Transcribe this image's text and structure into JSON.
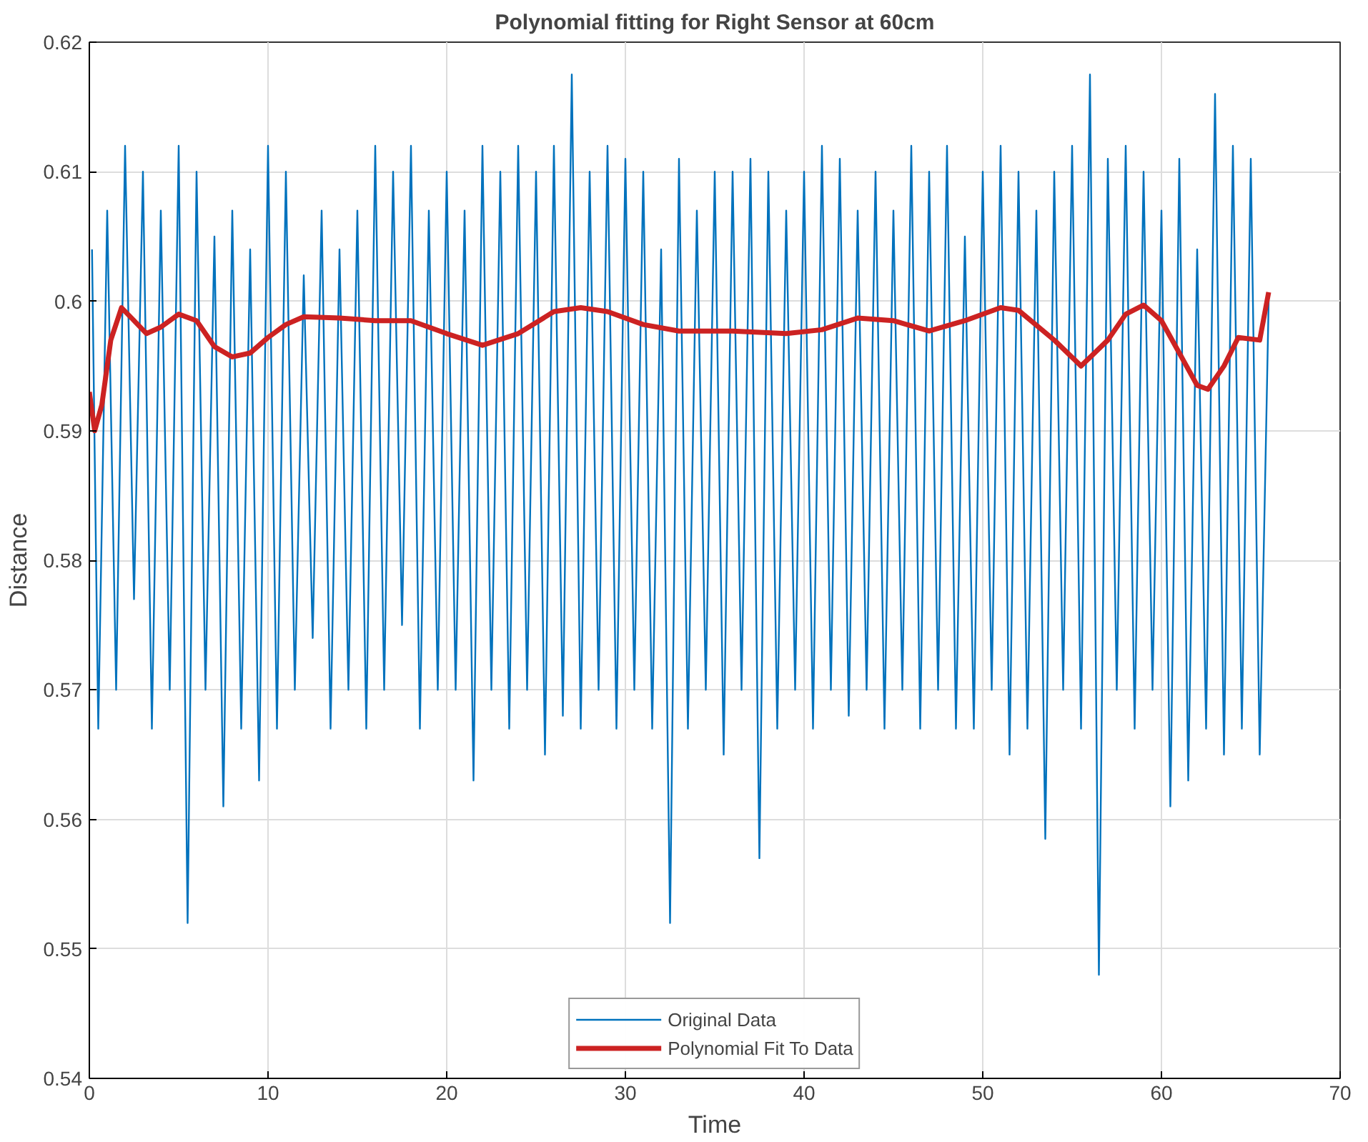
{
  "chart_data": {
    "type": "line",
    "title": "Polynomial fitting for Right Sensor at 60cm",
    "xlabel": "Time",
    "ylabel": "Distance",
    "xlim": [
      0,
      70
    ],
    "xticks": [
      0,
      10,
      20,
      30,
      40,
      50,
      60,
      70
    ],
    "ylim": [
      0.54,
      0.62
    ],
    "yticks": [
      0.54,
      0.55,
      0.56,
      0.57,
      0.58,
      0.59,
      0.6,
      0.61,
      0.62
    ],
    "grid": true,
    "legend": "bottom",
    "marker": "none",
    "series": [
      {
        "name": "Original Data",
        "color": "#0072bd",
        "x": [
          0.15,
          0.5,
          1,
          1.5,
          2,
          2.5,
          3,
          3.5,
          4,
          4.5,
          5,
          5.5,
          6,
          6.5,
          7,
          7.5,
          8,
          8.5,
          9,
          9.5,
          10,
          10.5,
          11,
          11.5,
          12,
          12.5,
          13,
          13.5,
          14,
          14.5,
          15,
          15.5,
          16,
          16.5,
          17,
          17.5,
          18,
          18.5,
          19,
          19.5,
          20,
          20.5,
          21,
          21.5,
          22,
          22.5,
          23,
          23.5,
          24,
          24.5,
          25,
          25.5,
          26,
          26.5,
          27,
          27.5,
          28,
          28.5,
          29,
          29.5,
          30,
          30.5,
          31,
          31.5,
          32,
          32.5,
          33,
          33.5,
          34,
          34.5,
          35,
          35.5,
          36,
          36.5,
          37,
          37.5,
          38,
          38.5,
          39,
          39.5,
          40,
          40.5,
          41,
          41.5,
          42,
          42.5,
          43,
          43.5,
          44,
          44.5,
          45,
          45.5,
          46,
          46.5,
          47,
          47.5,
          48,
          48.5,
          49,
          49.5,
          50,
          50.5,
          51,
          51.5,
          52,
          52.5,
          53,
          53.5,
          54,
          54.5,
          55,
          55.5,
          56,
          56.5,
          57,
          57.5,
          58,
          58.5,
          59,
          59.5,
          60,
          60.5,
          61,
          61.5,
          62,
          62.5,
          63,
          63.5,
          64,
          64.5,
          65,
          65.5,
          66
        ],
        "values": [
          0.604,
          0.567,
          0.607,
          0.57,
          0.612,
          0.577,
          0.61,
          0.567,
          0.607,
          0.57,
          0.612,
          0.552,
          0.61,
          0.57,
          0.605,
          0.561,
          0.607,
          0.567,
          0.604,
          0.563,
          0.612,
          0.567,
          0.61,
          0.57,
          0.602,
          0.574,
          0.607,
          0.567,
          0.604,
          0.57,
          0.607,
          0.567,
          0.612,
          0.57,
          0.61,
          0.575,
          0.612,
          0.567,
          0.607,
          0.57,
          0.61,
          0.57,
          0.607,
          0.563,
          0.612,
          0.57,
          0.61,
          0.567,
          0.612,
          0.57,
          0.61,
          0.565,
          0.612,
          0.568,
          0.6175,
          0.567,
          0.61,
          0.57,
          0.612,
          0.567,
          0.611,
          0.57,
          0.61,
          0.567,
          0.604,
          0.552,
          0.611,
          0.567,
          0.607,
          0.57,
          0.61,
          0.565,
          0.61,
          0.57,
          0.611,
          0.557,
          0.61,
          0.567,
          0.607,
          0.57,
          0.61,
          0.567,
          0.612,
          0.57,
          0.611,
          0.568,
          0.607,
          0.57,
          0.61,
          0.567,
          0.607,
          0.57,
          0.612,
          0.567,
          0.61,
          0.57,
          0.612,
          0.567,
          0.605,
          0.567,
          0.61,
          0.57,
          0.612,
          0.565,
          0.61,
          0.567,
          0.607,
          0.5585,
          0.61,
          0.57,
          0.612,
          0.567,
          0.6175,
          0.548,
          0.611,
          0.57,
          0.612,
          0.567,
          0.61,
          0.57,
          0.607,
          0.561,
          0.611,
          0.563,
          0.604,
          0.567,
          0.616,
          0.565,
          0.612,
          0.567,
          0.611,
          0.565,
          0.6
        ]
      },
      {
        "name": "Polynomial Fit To Data",
        "color": "#cc2222",
        "x": [
          0,
          0.3,
          0.7,
          1.2,
          1.8,
          2.5,
          3.2,
          4,
          5,
          6,
          7,
          8,
          9,
          10,
          11,
          12,
          14,
          16,
          18,
          20,
          22,
          24,
          26,
          27.5,
          29,
          31,
          33,
          36,
          39,
          41,
          43,
          45,
          47,
          49,
          51,
          52,
          54,
          55.5,
          57,
          58,
          59,
          60,
          61,
          62,
          62.6,
          63.5,
          64.3,
          65.5,
          66
        ],
        "values": [
          0.593,
          0.59,
          0.592,
          0.597,
          0.5995,
          0.5985,
          0.5975,
          0.598,
          0.599,
          0.5985,
          0.5965,
          0.5957,
          0.596,
          0.5972,
          0.5982,
          0.5988,
          0.5987,
          0.5985,
          0.5985,
          0.5975,
          0.5966,
          0.5975,
          0.5992,
          0.5995,
          0.5992,
          0.5982,
          0.5977,
          0.5977,
          0.5975,
          0.5978,
          0.5987,
          0.5985,
          0.5977,
          0.5985,
          0.5995,
          0.5993,
          0.597,
          0.595,
          0.597,
          0.599,
          0.5997,
          0.5985,
          0.596,
          0.5935,
          0.5932,
          0.595,
          0.5972,
          0.597,
          0.6007
        ]
      }
    ]
  }
}
